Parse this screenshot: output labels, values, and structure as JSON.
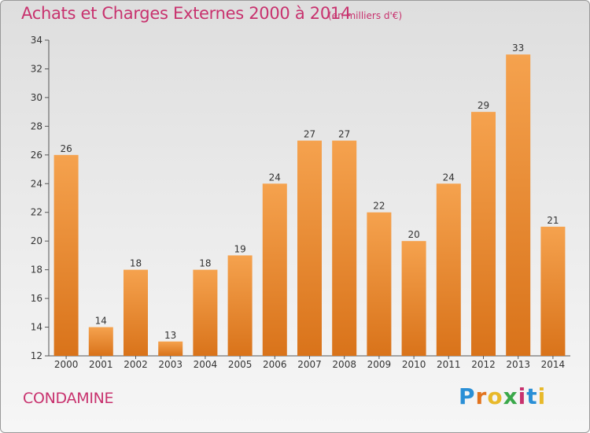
{
  "header": {
    "title": "Achats et Charges Externes 2000 à 2014",
    "subtitle": "(en milliers d'€)"
  },
  "footer": {
    "commune": "CONDAMINE",
    "logo_text": "Proxiti",
    "logo_colors": [
      "#2a8fd6",
      "#e2731e",
      "#e8b92a",
      "#3aa84a",
      "#c8326e",
      "#2a8fd6",
      "#e8b92a"
    ]
  },
  "colors": {
    "bar_top": "#f5a24e",
    "bar_bottom": "#d9731a",
    "text": "#c8326e",
    "axis": "#555555"
  },
  "chart_data": {
    "type": "bar",
    "title": "Achats et Charges Externes 2000 à 2014",
    "subtitle": "(en milliers d'€)",
    "categories": [
      "2000",
      "2001",
      "2002",
      "2003",
      "2004",
      "2005",
      "2006",
      "2007",
      "2008",
      "2009",
      "2010",
      "2011",
      "2012",
      "2013",
      "2014"
    ],
    "values": [
      26,
      14,
      18,
      13,
      18,
      19,
      24,
      27,
      27,
      22,
      20,
      24,
      29,
      33,
      21
    ],
    "ylim": [
      12,
      34
    ],
    "yticks": [
      12,
      14,
      16,
      18,
      20,
      22,
      24,
      26,
      28,
      30,
      32,
      34
    ],
    "grid": false,
    "data_labels": true
  }
}
